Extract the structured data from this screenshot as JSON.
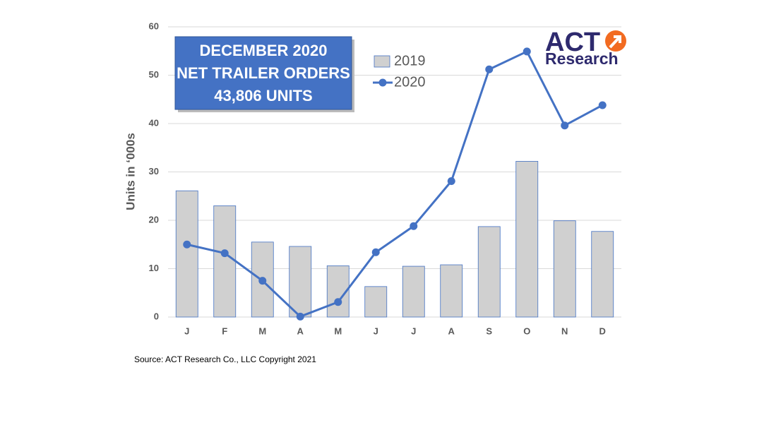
{
  "chart_data": {
    "type": "bar-line",
    "annotation": [
      "DECEMBER 2020",
      "NET TRAILER ORDERS",
      "43,806 UNITS"
    ],
    "logo": [
      "ACT",
      "Research"
    ],
    "y_label": "Units in ‘000s",
    "source": "Source: ACT Research Co., LLC  Copyright 2021",
    "categories": [
      "J",
      "F",
      "M",
      "A",
      "M",
      "J",
      "J",
      "A",
      "S",
      "O",
      "N",
      "D"
    ],
    "series": [
      {
        "name": "2019",
        "type": "bar",
        "color": "#d0d0d0",
        "values": [
          26.1,
          23.0,
          15.5,
          14.6,
          10.6,
          6.3,
          10.5,
          10.8,
          18.7,
          32.2,
          19.9,
          17.7
        ]
      },
      {
        "name": "2020",
        "type": "line",
        "color": "#4472c4",
        "values": [
          15.0,
          13.2,
          7.5,
          0.1,
          3.1,
          13.4,
          18.8,
          28.1,
          51.2,
          54.9,
          39.6,
          43.8
        ]
      }
    ],
    "ylim": [
      0,
      60
    ],
    "yticks": [
      0,
      10,
      20,
      30,
      40,
      50,
      60
    ],
    "grid": true
  }
}
